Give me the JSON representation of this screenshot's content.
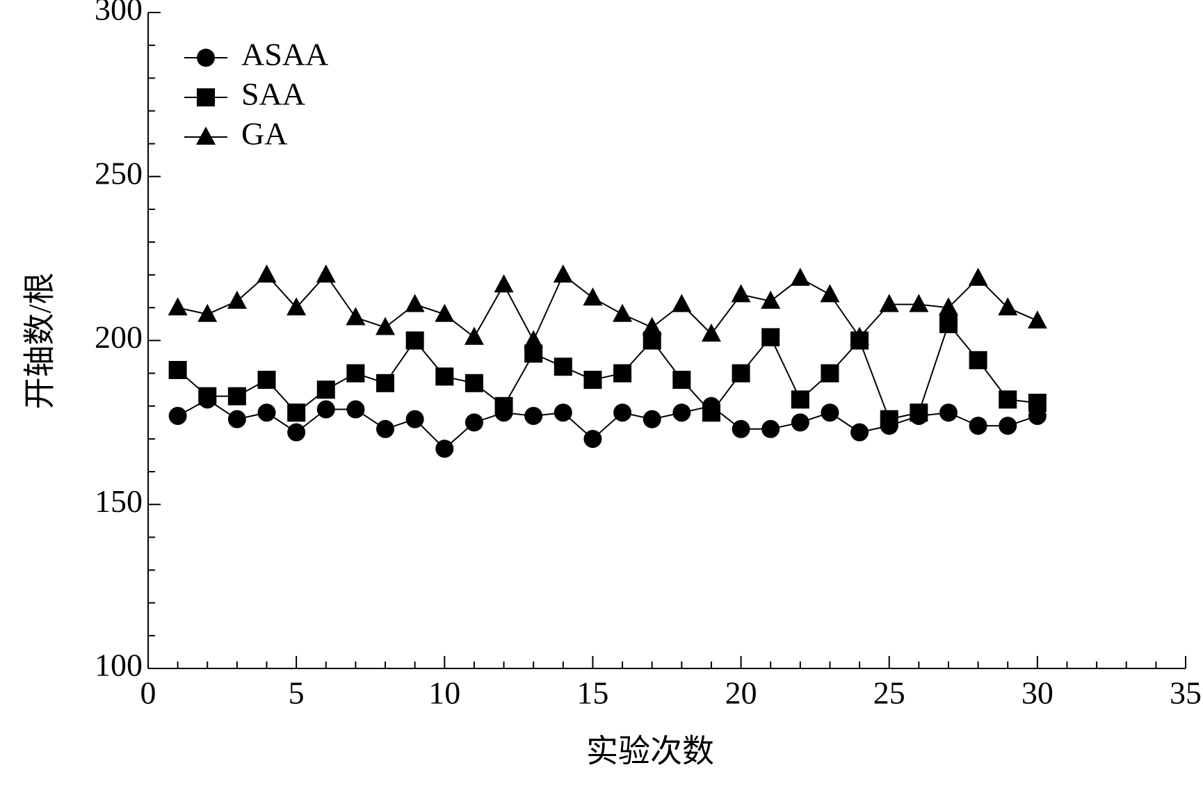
{
  "chart_data": {
    "type": "line",
    "xlabel": "实验次数",
    "ylabel": "开轴数/根",
    "x": [
      1,
      2,
      3,
      4,
      5,
      6,
      7,
      8,
      9,
      10,
      11,
      12,
      13,
      14,
      15,
      16,
      17,
      18,
      19,
      20,
      21,
      22,
      23,
      24,
      25,
      26,
      27,
      28,
      29,
      30
    ],
    "series": [
      {
        "name": "ASAA",
        "color": "#000000",
        "marker": "circle",
        "values": [
          177,
          182,
          176,
          178,
          172,
          179,
          179,
          173,
          176,
          167,
          175,
          178,
          177,
          178,
          170,
          178,
          176,
          178,
          180,
          173,
          173,
          175,
          178,
          172,
          174,
          177,
          178,
          174,
          174,
          177
        ]
      },
      {
        "name": "SAA",
        "color": "#000000",
        "marker": "square",
        "values": [
          191,
          183,
          183,
          188,
          178,
          185,
          190,
          187,
          200,
          189,
          187,
          180,
          196,
          192,
          188,
          190,
          200,
          188,
          178,
          190,
          201,
          182,
          190,
          200,
          176,
          178,
          205,
          194,
          182,
          181
        ]
      },
      {
        "name": "GA",
        "color": "#000000",
        "marker": "triangle",
        "values": [
          210,
          208,
          212,
          220,
          210,
          220,
          207,
          204,
          211,
          208,
          201,
          217,
          200,
          220,
          213,
          208,
          204,
          211,
          202,
          214,
          212,
          219,
          214,
          201,
          211,
          211,
          210,
          219,
          210,
          206
        ]
      }
    ],
    "xlim": [
      0,
      35
    ],
    "xticks": [
      0,
      5,
      10,
      15,
      20,
      25,
      30,
      35
    ],
    "xminorticks": [
      1,
      2,
      3,
      4,
      6,
      7,
      8,
      9,
      11,
      12,
      13,
      14,
      16,
      17,
      18,
      19,
      21,
      22,
      23,
      24,
      26,
      27,
      28,
      29,
      31,
      32,
      33,
      34
    ],
    "ylim": [
      100,
      300
    ],
    "yticks": [
      100,
      150,
      200,
      250,
      300
    ],
    "yminorticks": [
      110,
      120,
      130,
      140,
      160,
      170,
      180,
      190,
      210,
      220,
      230,
      240,
      260,
      270,
      280,
      290
    ],
    "legend": "upper-left"
  }
}
